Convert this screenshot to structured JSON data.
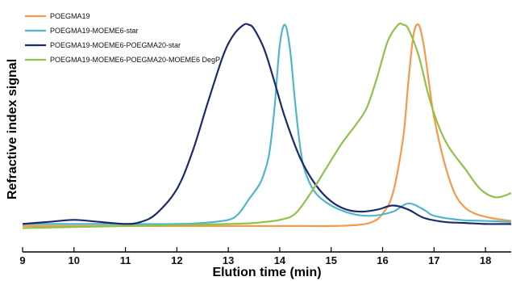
{
  "chart_data": {
    "type": "line",
    "title": "",
    "xlabel": "Elution time (min)",
    "ylabel": "Refractive index signal",
    "xlim": [
      9,
      18.5
    ],
    "ylim": [
      0,
      1.05
    ],
    "xticks": [
      "9",
      "10",
      "11",
      "12",
      "13",
      "14",
      "15",
      "16",
      "17",
      "18"
    ],
    "yticks": [],
    "grid": false,
    "legend_position": "top-left",
    "series": [
      {
        "name": "POEGMA19",
        "color": "#f39a4b",
        "x": [
          9.0,
          10.0,
          11.0,
          12.0,
          13.0,
          14.0,
          14.5,
          15.0,
          15.5,
          15.8,
          16.0,
          16.2,
          16.4,
          16.5,
          16.6,
          16.7,
          16.8,
          16.9,
          17.0,
          17.2,
          17.4,
          17.6,
          17.8,
          18.0,
          18.2,
          18.5
        ],
        "y": [
          0.02,
          0.02,
          0.02,
          0.02,
          0.02,
          0.02,
          0.02,
          0.02,
          0.025,
          0.04,
          0.08,
          0.18,
          0.45,
          0.72,
          0.95,
          1.0,
          0.9,
          0.72,
          0.55,
          0.33,
          0.18,
          0.11,
          0.08,
          0.065,
          0.055,
          0.045
        ]
      },
      {
        "name": "POEGMA19-MOEME6-star",
        "color": "#4fb6cc",
        "x": [
          9.0,
          10.0,
          11.0,
          12.0,
          12.5,
          13.0,
          13.2,
          13.4,
          13.6,
          13.7,
          13.8,
          13.9,
          14.0,
          14.1,
          14.2,
          14.3,
          14.4,
          14.5,
          14.7,
          15.0,
          15.4,
          15.8,
          16.2,
          16.5,
          16.8,
          17.0,
          17.5,
          18.0,
          18.5
        ],
        "y": [
          0.03,
          0.03,
          0.03,
          0.03,
          0.035,
          0.05,
          0.08,
          0.15,
          0.22,
          0.28,
          0.38,
          0.6,
          0.9,
          1.0,
          0.88,
          0.62,
          0.4,
          0.28,
          0.18,
          0.12,
          0.08,
          0.07,
          0.09,
          0.13,
          0.1,
          0.07,
          0.05,
          0.045,
          0.04
        ]
      },
      {
        "name": "POEGMA19-MOEME6-POEGMA20-star",
        "color": "#1c2a6b",
        "x": [
          9.0,
          9.5,
          10.0,
          10.5,
          11.0,
          11.3,
          11.6,
          12.0,
          12.3,
          12.6,
          12.9,
          13.1,
          13.3,
          13.4,
          13.5,
          13.7,
          13.9,
          14.1,
          14.4,
          14.7,
          15.0,
          15.3,
          15.6,
          15.9,
          16.2,
          16.5,
          16.8,
          17.2,
          17.6,
          18.0,
          18.5
        ],
        "y": [
          0.03,
          0.04,
          0.05,
          0.04,
          0.03,
          0.04,
          0.08,
          0.2,
          0.38,
          0.62,
          0.85,
          0.95,
          1.0,
          1.0,
          0.98,
          0.88,
          0.72,
          0.55,
          0.35,
          0.22,
          0.14,
          0.1,
          0.09,
          0.1,
          0.12,
          0.1,
          0.06,
          0.04,
          0.035,
          0.03,
          0.03
        ]
      },
      {
        "name": "POEGMA19-MOEME6-POEGMA20-MOEME6 DegP",
        "color": "#8fc24a",
        "x": [
          9.0,
          10.0,
          11.0,
          12.0,
          13.0,
          13.5,
          14.0,
          14.3,
          14.6,
          14.9,
          15.2,
          15.5,
          15.7,
          15.9,
          16.1,
          16.3,
          16.4,
          16.5,
          16.7,
          16.9,
          17.1,
          17.3,
          17.6,
          17.9,
          18.2,
          18.5
        ],
        "y": [
          0.01,
          0.015,
          0.02,
          0.025,
          0.03,
          0.035,
          0.05,
          0.08,
          0.18,
          0.3,
          0.42,
          0.52,
          0.6,
          0.75,
          0.92,
          1.0,
          1.0,
          0.98,
          0.85,
          0.65,
          0.5,
          0.4,
          0.3,
          0.2,
          0.16,
          0.18
        ]
      }
    ]
  }
}
